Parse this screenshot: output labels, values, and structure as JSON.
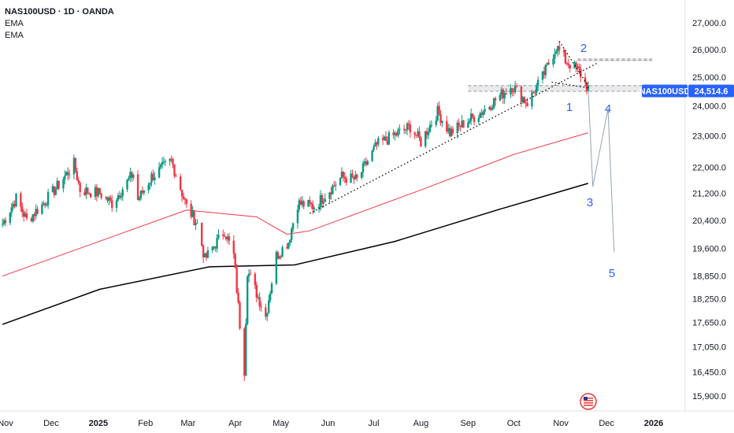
{
  "header": {
    "title": "NAS100USD · 1D · OANDA",
    "indicators": [
      "EMA",
      "EMA"
    ]
  },
  "price_tag": {
    "symbol": "NAS100USD",
    "value": "24,514.6",
    "bg_color": "#2962ff"
  },
  "wave_labels": [
    "1",
    "2",
    "3",
    "4",
    "5"
  ],
  "colors": {
    "up": "#089981",
    "down": "#f23645",
    "ema_fast": "#f23645",
    "ema_slow": "#000000",
    "wave": "#2962ff",
    "projection": "#90a4ae"
  },
  "chart_data": {
    "type": "candlestick",
    "title": "NAS100USD · 1D · OANDA",
    "y_ticks": [
      "27,000.0",
      "26,000.0",
      "25,000.0",
      "24,000.0",
      "23,000.0",
      "22,000.0",
      "21,200.0",
      "20,400.0",
      "19,600.0",
      "18,850.0",
      "18,250.0",
      "17,650.0",
      "17,050.0",
      "16,450.0",
      "15,900.0"
    ],
    "x_ticks": [
      "Nov",
      "Dec",
      "2025",
      "Feb",
      "Mar",
      "Apr",
      "May",
      "Jun",
      "Jul",
      "Aug",
      "Sep",
      "Oct",
      "Nov",
      "Dec",
      "2026"
    ],
    "scale": "log",
    "ylim": [
      15600,
      27600
    ],
    "last_price": 24514.6,
    "price_path": [
      [
        "2024-10-30",
        20300
      ],
      [
        "2024-11-08",
        21050
      ],
      [
        "2024-11-15",
        20400
      ],
      [
        "2024-11-25",
        20850
      ],
      [
        "2024-12-05",
        21400
      ],
      [
        "2024-12-16",
        22100
      ],
      [
        "2024-12-20",
        21300
      ],
      [
        "2025-01-02",
        21200
      ],
      [
        "2025-01-10",
        20900
      ],
      [
        "2025-01-24",
        21800
      ],
      [
        "2025-01-27",
        21000
      ],
      [
        "2025-02-05",
        21700
      ],
      [
        "2025-02-18",
        22200
      ],
      [
        "2025-02-28",
        20800
      ],
      [
        "2025-03-07",
        20300
      ],
      [
        "2025-03-12",
        19300
      ],
      [
        "2025-03-25",
        20100
      ],
      [
        "2025-03-31",
        19400
      ],
      [
        "2025-04-04",
        17600
      ],
      [
        "2025-04-07",
        16500
      ],
      [
        "2025-04-09",
        19000
      ],
      [
        "2025-04-21",
        17800
      ],
      [
        "2025-04-28",
        19400
      ],
      [
        "2025-05-06",
        19800
      ],
      [
        "2025-05-12",
        20900
      ],
      [
        "2025-05-23",
        20800
      ],
      [
        "2025-06-10",
        21700
      ],
      [
        "2025-06-20",
        21600
      ],
      [
        "2025-07-03",
        22700
      ],
      [
        "2025-07-25",
        23300
      ],
      [
        "2025-08-01",
        22800
      ],
      [
        "2025-08-12",
        23800
      ],
      [
        "2025-08-20",
        23100
      ],
      [
        "2025-09-10",
        23800
      ],
      [
        "2025-09-30",
        24700
      ],
      [
        "2025-10-10",
        24100
      ],
      [
        "2025-10-20",
        25000
      ],
      [
        "2025-10-29",
        26100
      ],
      [
        "2025-11-04",
        25600
      ],
      [
        "2025-11-13",
        25200
      ],
      [
        "2025-11-19",
        24550
      ]
    ],
    "ema_fast": [
      [
        "2024-10-30",
        18850
      ],
      [
        "2025-02-28",
        20700
      ],
      [
        "2025-04-15",
        20500
      ],
      [
        "2025-05-05",
        20000
      ],
      [
        "2025-05-20",
        20100
      ],
      [
        "2025-08-01",
        21300
      ],
      [
        "2025-10-01",
        22400
      ],
      [
        "2025-11-19",
        23100
      ]
    ],
    "ema_slow": [
      [
        "2024-10-30",
        17600
      ],
      [
        "2025-01-02",
        18500
      ],
      [
        "2025-03-15",
        19100
      ],
      [
        "2025-05-10",
        19150
      ],
      [
        "2025-07-15",
        19800
      ],
      [
        "2025-09-20",
        20700
      ],
      [
        "2025-11-19",
        21500
      ]
    ],
    "projection": [
      [
        "2025-11-19",
        24550
      ],
      [
        "2025-11-22",
        21400
      ],
      [
        "2025-12-02",
        23900
      ],
      [
        "2025-12-06",
        19500
      ]
    ],
    "trendlines": [
      {
        "style": "dotted",
        "from": [
          "2025-05-20",
          20600
        ],
        "to": [
          "2025-11-25",
          25500
        ]
      },
      {
        "style": "dotted",
        "from": [
          "2025-10-31",
          26300
        ],
        "to": [
          "2025-11-20",
          24600
        ]
      },
      {
        "style": "dotted",
        "from": [
          "2025-10-26",
          24820
        ],
        "to": [
          "2025-11-20",
          24610
        ]
      }
    ],
    "zones": [
      {
        "from": [
          "2025-09-01",
          24700
        ],
        "to": [
          "2025-12-31",
          24500
        ]
      },
      {
        "from": [
          "2025-11-12",
          25650
        ],
        "to": [
          "2025-12-31",
          25600
        ]
      }
    ]
  }
}
